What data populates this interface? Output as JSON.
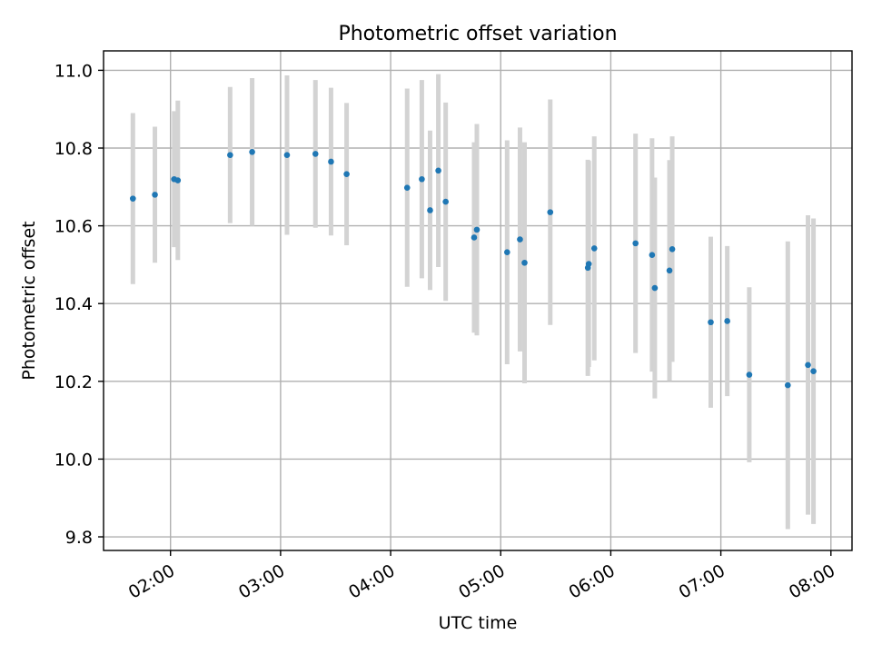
{
  "chart_data": {
    "type": "scatter",
    "title": "Photometric offset variation",
    "xlabel": "UTC time",
    "ylabel": "Photometric offset",
    "x_tick_labels": [
      "02:00",
      "03:00",
      "04:00",
      "05:00",
      "06:00",
      "07:00",
      "08:00"
    ],
    "x_tick_minutes": [
      120,
      180,
      240,
      300,
      360,
      420,
      480
    ],
    "y_ticks": [
      9.8,
      10.0,
      10.2,
      10.4,
      10.6,
      10.8,
      11.0
    ],
    "y_tick_labels": [
      "9.8",
      "10.0",
      "10.2",
      "10.4",
      "10.6",
      "10.8",
      "11.0"
    ],
    "xlim_minutes": [
      83.5,
      491.5
    ],
    "ylim": [
      9.765,
      11.05
    ],
    "grid": true,
    "colors": {
      "points": "#1f77b4",
      "errorbars": "#d3d3d3"
    },
    "series": [
      {
        "points": [
          {
            "t": 99.5,
            "y": 10.67,
            "err": 0.22
          },
          {
            "t": 111.5,
            "y": 10.68,
            "err": 0.175
          },
          {
            "t": 122,
            "y": 10.72,
            "err": 0.175
          },
          {
            "t": 124,
            "y": 10.717,
            "err": 0.205
          },
          {
            "t": 152.5,
            "y": 10.782,
            "err": 0.175
          },
          {
            "t": 164.5,
            "y": 10.79,
            "err": 0.19
          },
          {
            "t": 183.5,
            "y": 10.782,
            "err": 0.205
          },
          {
            "t": 199,
            "y": 10.785,
            "err": 0.19
          },
          {
            "t": 207.5,
            "y": 10.765,
            "err": 0.19
          },
          {
            "t": 216,
            "y": 10.733,
            "err": 0.183
          },
          {
            "t": 249,
            "y": 10.698,
            "err": 0.255
          },
          {
            "t": 257,
            "y": 10.72,
            "err": 0.255
          },
          {
            "t": 261.5,
            "y": 10.64,
            "err": 0.205
          },
          {
            "t": 266,
            "y": 10.742,
            "err": 0.248
          },
          {
            "t": 270,
            "y": 10.662,
            "err": 0.255
          },
          {
            "t": 285.5,
            "y": 10.57,
            "err": 0.245
          },
          {
            "t": 287,
            "y": 10.59,
            "err": 0.272
          },
          {
            "t": 303.5,
            "y": 10.532,
            "err": 0.288
          },
          {
            "t": 310.5,
            "y": 10.565,
            "err": 0.288
          },
          {
            "t": 313,
            "y": 10.505,
            "err": 0.31
          },
          {
            "t": 327,
            "y": 10.635,
            "err": 0.29
          },
          {
            "t": 347.5,
            "y": 10.492,
            "err": 0.278
          },
          {
            "t": 348,
            "y": 10.502,
            "err": 0.265
          },
          {
            "t": 351,
            "y": 10.542,
            "err": 0.288
          },
          {
            "t": 373.5,
            "y": 10.555,
            "err": 0.282
          },
          {
            "t": 382.5,
            "y": 10.525,
            "err": 0.3
          },
          {
            "t": 384,
            "y": 10.44,
            "err": 0.284
          },
          {
            "t": 392,
            "y": 10.485,
            "err": 0.284
          },
          {
            "t": 393.5,
            "y": 10.54,
            "err": 0.29
          },
          {
            "t": 414.5,
            "y": 10.352,
            "err": 0.22
          },
          {
            "t": 423.5,
            "y": 10.355,
            "err": 0.193
          },
          {
            "t": 435.5,
            "y": 10.217,
            "err": 0.225
          },
          {
            "t": 456.5,
            "y": 10.19,
            "err": 0.37
          },
          {
            "t": 467.5,
            "y": 10.242,
            "err": 0.385
          },
          {
            "t": 470.5,
            "y": 10.226,
            "err": 0.393
          }
        ]
      }
    ]
  }
}
